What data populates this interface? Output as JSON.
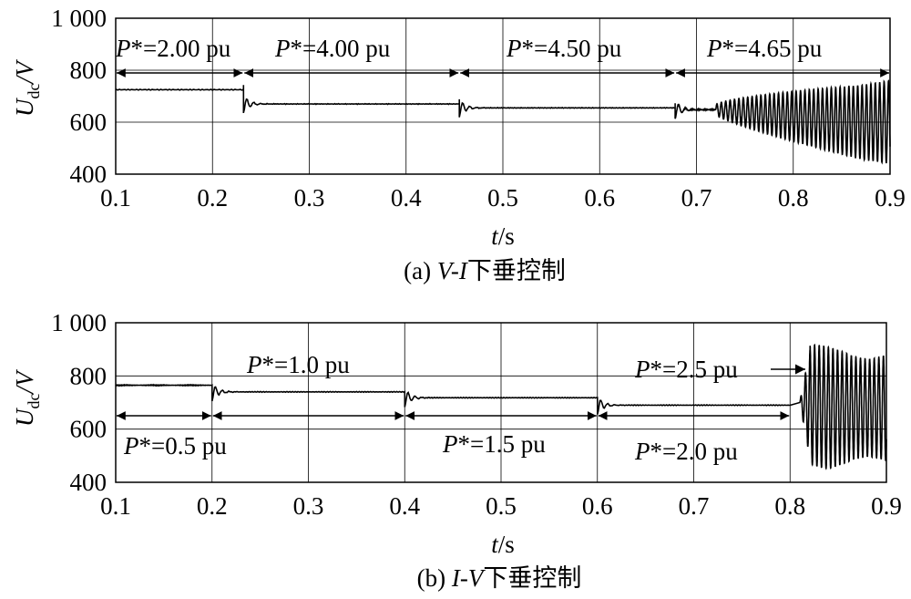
{
  "charts": [
    {
      "caption": {
        "prefix": "(a) ",
        "italic": "V-I",
        "suffix": "下垂控制"
      },
      "ylabel": {
        "main": "U",
        "sub": "dc",
        "rest": "/V"
      },
      "xlabel": {
        "italic": "t",
        "rest": "/s"
      },
      "annotations": [
        {
          "star": "P",
          "text": "*=2.00 pu"
        },
        {
          "star": "P",
          "text": "*=4.00 pu"
        },
        {
          "star": "P",
          "text": "*=4.50 pu"
        },
        {
          "star": "P",
          "text": "*=4.65 pu"
        }
      ]
    },
    {
      "caption": {
        "prefix": "(b) ",
        "italic": "I-V",
        "suffix": "下垂控制"
      },
      "ylabel": {
        "main": "U",
        "sub": "dc",
        "rest": "/V"
      },
      "xlabel": {
        "italic": "t",
        "rest": "/s"
      },
      "annotations": [
        {
          "star": "P",
          "text": "*=0.5 pu"
        },
        {
          "star": "P",
          "text": "*=1.0 pu"
        },
        {
          "star": "P",
          "text": "*=1.5 pu"
        },
        {
          "star": "P",
          "text": "*=2.0 pu"
        },
        {
          "star": "P",
          "text": "*=2.5 pu"
        }
      ]
    }
  ],
  "chart_data": [
    {
      "type": "line",
      "title": "(a) V-I下垂控制",
      "xlabel": "t/s",
      "ylabel": "Udc/V",
      "xlim": [
        0.1,
        0.9
      ],
      "ylim": [
        400,
        1000
      ],
      "xticks": [
        "0.1",
        "0.2",
        "0.3",
        "0.4",
        "0.5",
        "0.6",
        "0.7",
        "0.8",
        "0.9"
      ],
      "yticks": [
        "400",
        "600",
        "800",
        "1 000"
      ],
      "grid": true,
      "step_times": [
        0.232,
        0.455,
        0.678
      ],
      "levels": [
        {
          "t_start": 0.1,
          "t_end": 0.232,
          "value": 725
        },
        {
          "t_start": 0.232,
          "t_end": 0.455,
          "value": 670
        },
        {
          "t_start": 0.455,
          "t_end": 0.678,
          "value": 655
        },
        {
          "t_start": 0.678,
          "t_end": 0.72,
          "value": 648
        }
      ],
      "oscillation": {
        "t_start": 0.72,
        "t_end": 0.9,
        "center": 600,
        "amplitude_end": 160,
        "frequency_hz": 220
      },
      "segments": [
        {
          "label": "P*=2.00 pu",
          "t_start": 0.1,
          "t_end": 0.232
        },
        {
          "label": "P*=4.00 pu",
          "t_start": 0.232,
          "t_end": 0.455
        },
        {
          "label": "P*=4.50 pu",
          "t_start": 0.455,
          "t_end": 0.678
        },
        {
          "label": "P*=4.65 pu",
          "t_start": 0.678,
          "t_end": 0.9
        }
      ]
    },
    {
      "type": "line",
      "title": "(b) I-V下垂控制",
      "xlabel": "t/s",
      "ylabel": "Udc/V",
      "xlim": [
        0.1,
        0.9
      ],
      "ylim": [
        400,
        1000
      ],
      "xticks": [
        "0.1",
        "0.2",
        "0.3",
        "0.4",
        "0.5",
        "0.6",
        "0.7",
        "0.8",
        "0.9"
      ],
      "yticks": [
        "400",
        "600",
        "800",
        "1 000"
      ],
      "grid": true,
      "step_times": [
        0.2,
        0.4,
        0.6,
        0.8
      ],
      "levels": [
        {
          "t_start": 0.1,
          "t_end": 0.2,
          "value": 765
        },
        {
          "t_start": 0.2,
          "t_end": 0.4,
          "value": 740
        },
        {
          "t_start": 0.4,
          "t_end": 0.6,
          "value": 718
        },
        {
          "t_start": 0.6,
          "t_end": 0.8,
          "value": 690
        }
      ],
      "oscillation": {
        "t_start": 0.81,
        "t_end": 0.9,
        "center": 700,
        "amplitude_end": 230,
        "frequency_hz": 210
      },
      "segments": [
        {
          "label": "P*=0.5 pu",
          "t_start": 0.1,
          "t_end": 0.2
        },
        {
          "label": "P*=1.0 pu",
          "t_start": 0.2,
          "t_end": 0.4
        },
        {
          "label": "P*=1.5 pu",
          "t_start": 0.4,
          "t_end": 0.6
        },
        {
          "label": "P*=2.0 pu",
          "t_start": 0.6,
          "t_end": 0.8
        },
        {
          "label": "P*=2.5 pu",
          "t_start": 0.8,
          "t_end": 0.9
        }
      ]
    }
  ]
}
